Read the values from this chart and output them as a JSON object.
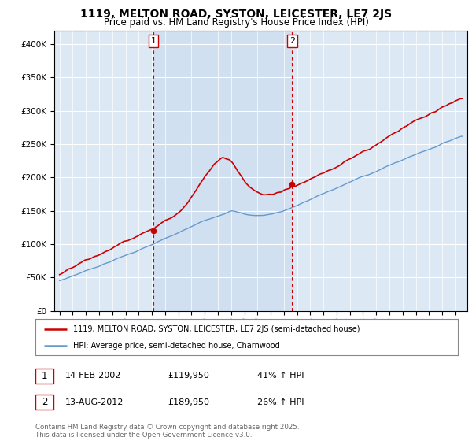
{
  "title": "1119, MELTON ROAD, SYSTON, LEICESTER, LE7 2JS",
  "subtitle": "Price paid vs. HM Land Registry's House Price Index (HPI)",
  "background_color": "#dce9f5",
  "shade_color": "#c5d8ee",
  "legend_entry1": "1119, MELTON ROAD, SYSTON, LEICESTER, LE7 2JS (semi-detached house)",
  "legend_entry2": "HPI: Average price, semi-detached house, Charnwood",
  "sale1_label": "1",
  "sale1_date": "14-FEB-2002",
  "sale1_price": "£119,950",
  "sale1_hpi": "41% ↑ HPI",
  "sale2_label": "2",
  "sale2_date": "13-AUG-2012",
  "sale2_price": "£189,950",
  "sale2_hpi": "26% ↑ HPI",
  "footer": "Contains HM Land Registry data © Crown copyright and database right 2025.\nThis data is licensed under the Open Government Licence v3.0.",
  "ylim": [
    0,
    420000
  ],
  "yticks": [
    0,
    50000,
    100000,
    150000,
    200000,
    250000,
    300000,
    350000,
    400000
  ],
  "sale1_year": 2002.12,
  "sale2_year": 2012.62,
  "red_color": "#cc0000",
  "blue_color": "#6699cc",
  "sale1_price_val": 119950,
  "sale2_price_val": 189950
}
